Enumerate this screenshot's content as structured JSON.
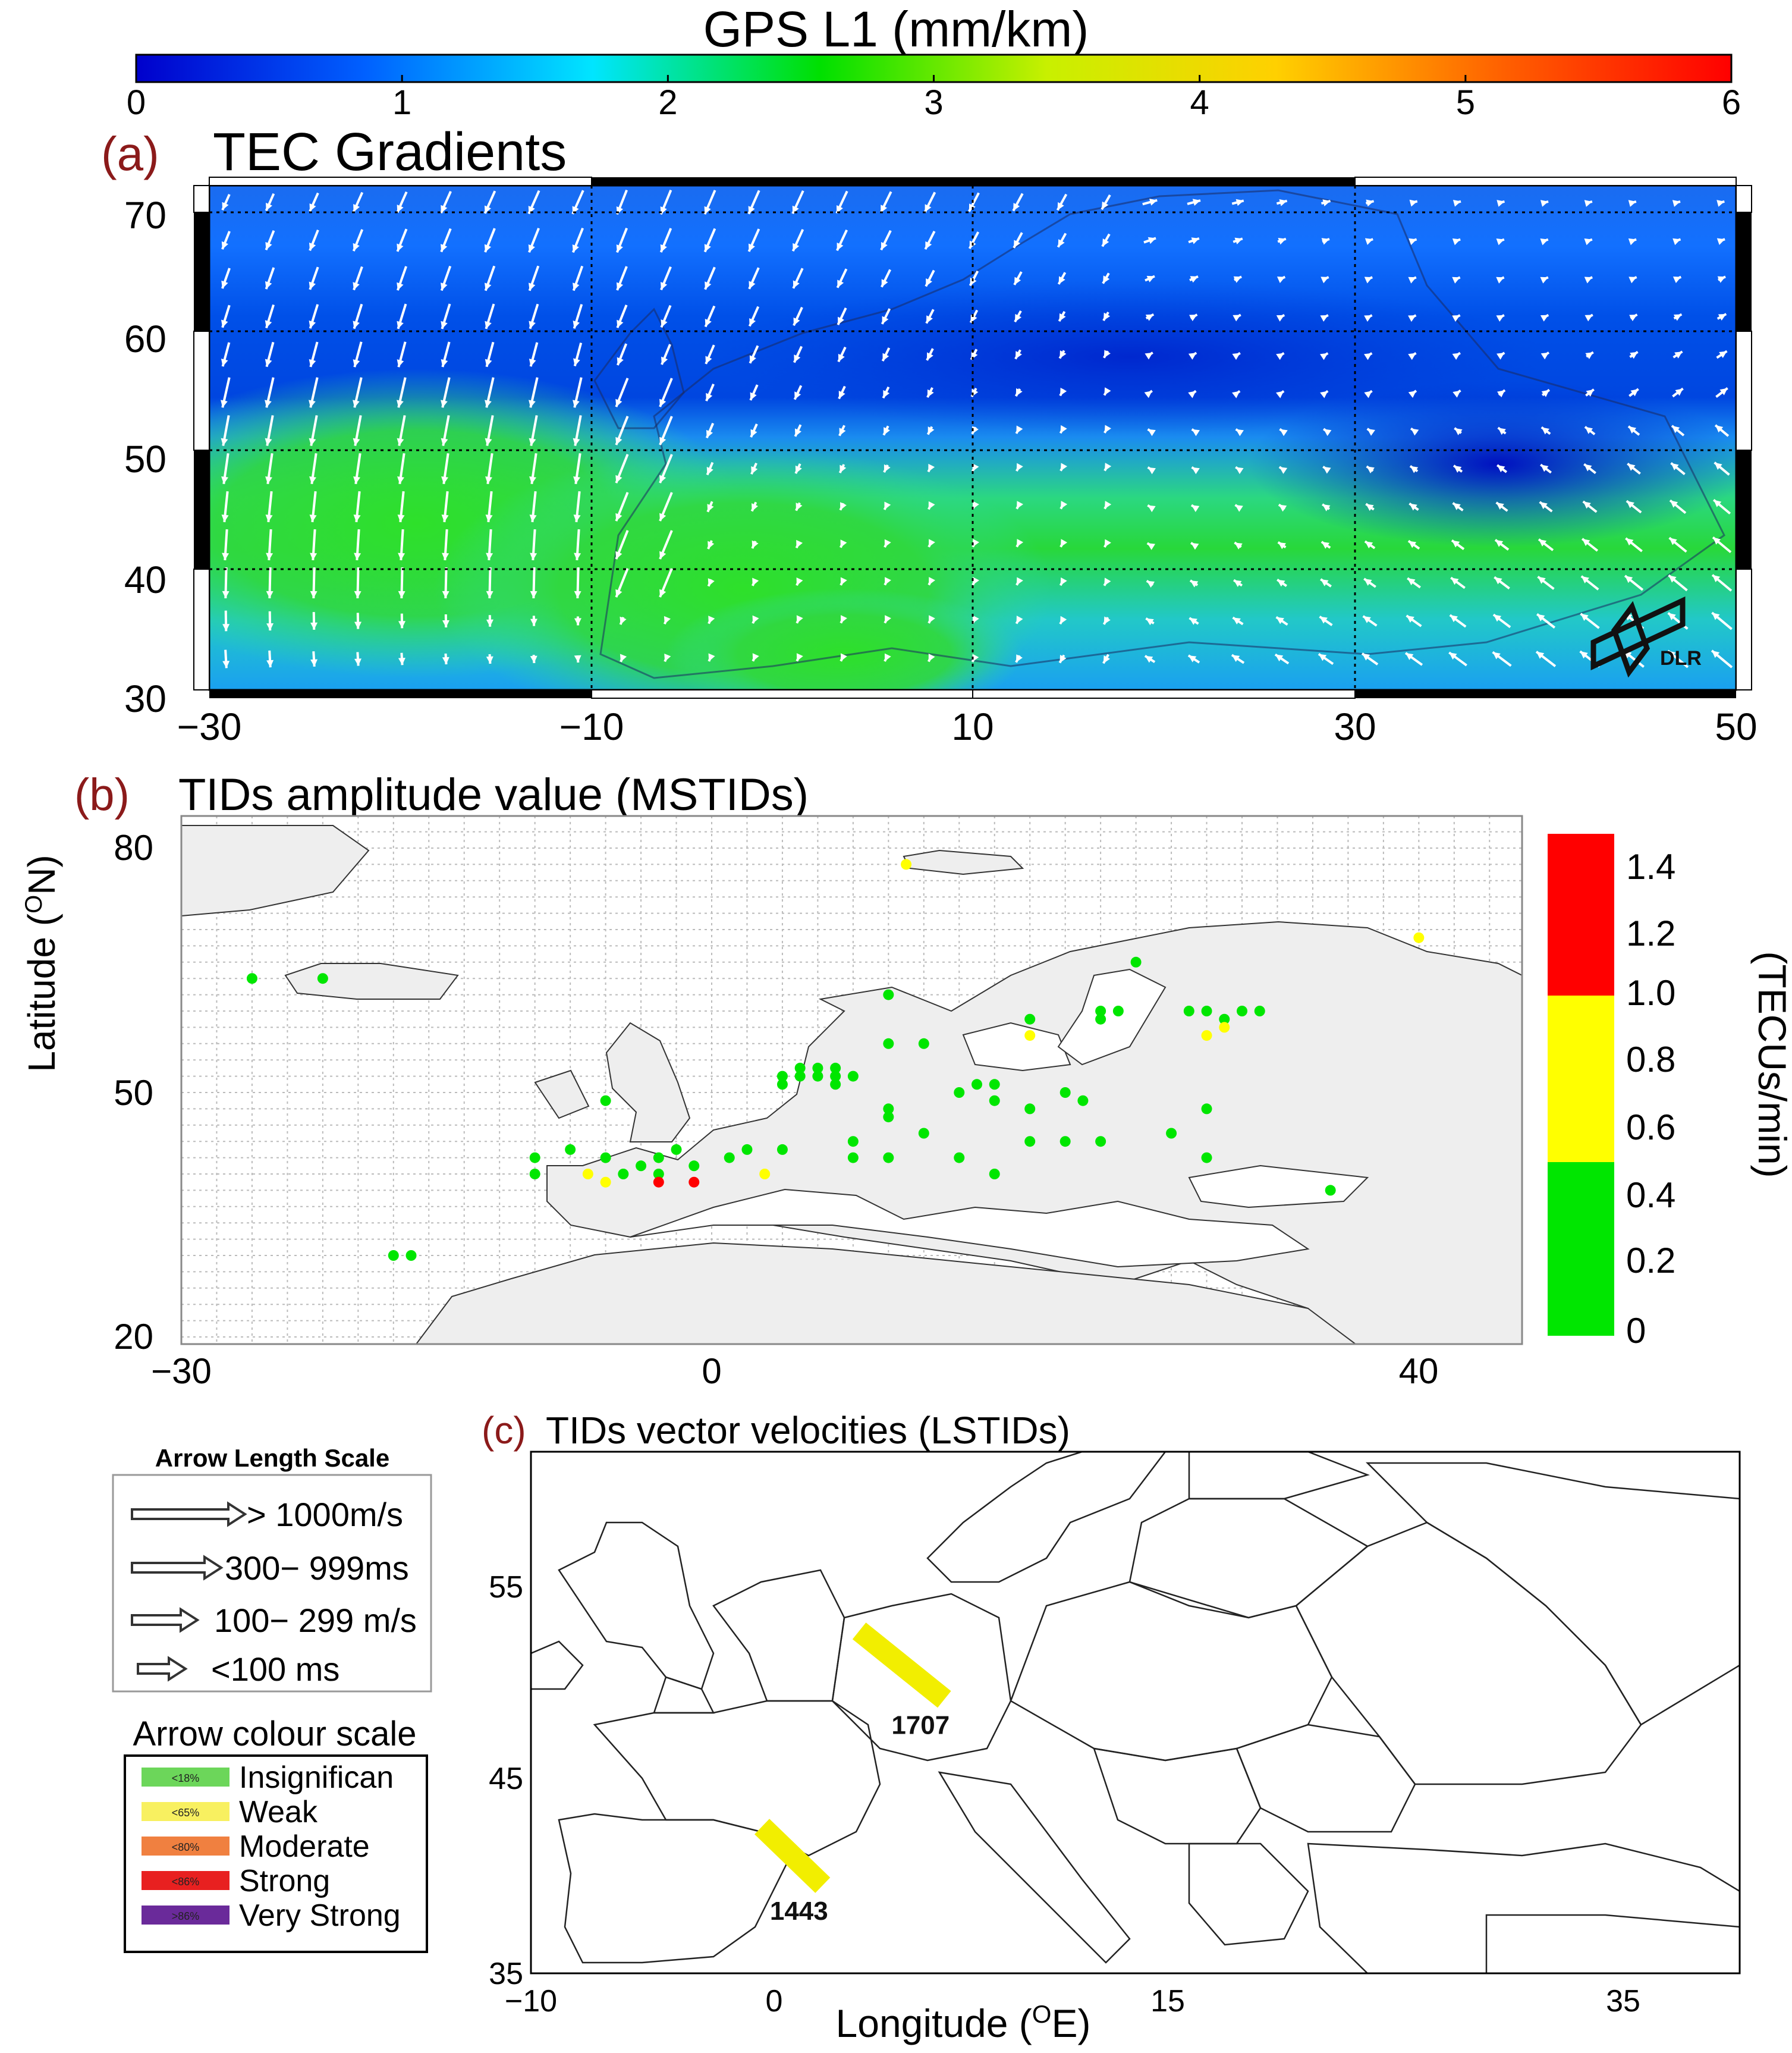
{
  "colors": {
    "ocean": "#f4f4f4",
    "land": "#e9e9e9",
    "panel_label": "#8b1a1a",
    "green": "#00e600",
    "yellow": "#ffff00",
    "red": "#ff0000",
    "track": "#f2ee00"
  },
  "colorbar": {
    "title": "GPS L1 (mm/km)",
    "ticks": [
      "0",
      "1",
      "2",
      "3",
      "4",
      "5",
      "6"
    ],
    "gradient": [
      "#0000cc",
      "#0060ff",
      "#00e5ff",
      "#00e000",
      "#c8f000",
      "#ffd000",
      "#ff6000",
      "#ff0000"
    ]
  },
  "panel_a": {
    "label": "(a)",
    "title": "TEC Gradients",
    "x_ticks": [
      "−30",
      "−10",
      "10",
      "30",
      "50"
    ],
    "y_ticks": [
      "70",
      "60",
      "50",
      "40",
      "30"
    ],
    "logo_text": "DLR"
  },
  "panel_b": {
    "label": "(b)",
    "title": "TIDs amplitude value (MSTIDs)",
    "ylabel": "Latitude (",
    "ylabel_sup": "O",
    "ylabel_end": "N)",
    "x_ticks": [
      "−30",
      "0",
      "40"
    ],
    "y_ticks": [
      "80",
      "50",
      "20"
    ],
    "legend_ticks": [
      "1.4",
      "1.2",
      "1.0",
      "0.8",
      "0.6",
      "0.4",
      "0.2",
      "0"
    ],
    "legend_unit": "(TECUs/min)",
    "stations": {
      "green": [
        [
          -26,
          64
        ],
        [
          -22,
          64
        ],
        [
          10,
          62
        ],
        [
          24,
          66
        ],
        [
          22,
          60
        ],
        [
          23,
          60
        ],
        [
          27,
          60
        ],
        [
          30,
          60
        ],
        [
          31,
          60
        ],
        [
          18,
          59
        ],
        [
          22,
          59
        ],
        [
          28,
          60
        ],
        [
          29,
          59
        ],
        [
          10,
          56
        ],
        [
          12,
          56
        ],
        [
          4,
          52
        ],
        [
          5,
          53
        ],
        [
          6,
          53
        ],
        [
          6,
          52
        ],
        [
          7,
          52
        ],
        [
          7,
          53
        ],
        [
          5,
          52
        ],
        [
          8,
          52
        ],
        [
          7,
          51
        ],
        [
          4,
          51
        ],
        [
          -6,
          49
        ],
        [
          10,
          48
        ],
        [
          15,
          51
        ],
        [
          16,
          51
        ],
        [
          14,
          50
        ],
        [
          16,
          49
        ],
        [
          20,
          50
        ],
        [
          21,
          49
        ],
        [
          18,
          48
        ],
        [
          10,
          47
        ],
        [
          28,
          48
        ],
        [
          26,
          45
        ],
        [
          22,
          44
        ],
        [
          20,
          44
        ],
        [
          18,
          44
        ],
        [
          12,
          45
        ],
        [
          8,
          44
        ],
        [
          8,
          42
        ],
        [
          10,
          42
        ],
        [
          14,
          42
        ],
        [
          16,
          40
        ],
        [
          28,
          42
        ],
        [
          35,
          38
        ],
        [
          -8,
          43
        ],
        [
          -10,
          42
        ],
        [
          -6,
          42
        ],
        [
          -4,
          41
        ],
        [
          -3,
          42
        ],
        [
          -2,
          43
        ],
        [
          -1,
          41
        ],
        [
          1,
          42
        ],
        [
          2,
          43
        ],
        [
          4,
          43
        ],
        [
          -5,
          40
        ],
        [
          -3,
          40
        ],
        [
          -10,
          40
        ],
        [
          -18,
          30
        ],
        [
          -17,
          30
        ]
      ],
      "yellow": [
        [
          11,
          78
        ],
        [
          40,
          69
        ],
        [
          18,
          57
        ],
        [
          28,
          57
        ],
        [
          29,
          58
        ],
        [
          -7,
          40
        ],
        [
          -6,
          39
        ],
        [
          3,
          40
        ]
      ],
      "red": [
        [
          -3,
          39
        ],
        [
          -1,
          39
        ]
      ]
    }
  },
  "panel_c": {
    "label": "(c)",
    "title": "TIDs vector velocities (LSTIDs)",
    "xlabel": "Longitude (",
    "xlabel_sup": "O",
    "xlabel_end": "E)",
    "x_ticks": [
      "−10",
      "0",
      "15",
      "35"
    ],
    "y_ticks": [
      "55",
      "45",
      "35"
    ],
    "tracks": [
      {
        "id": "1707",
        "from": [
          3.5,
          52.5
        ],
        "to": [
          7,
          49
        ]
      },
      {
        "id": "1443",
        "from": [
          -0.5,
          42.5
        ],
        "to": [
          2,
          39.5
        ]
      }
    ]
  },
  "legend_length": {
    "title": "Arrow Length Scale",
    "items": [
      "> 1000m/s",
      "300− 999ms",
      "100− 299 m/s",
      "<100 ms"
    ]
  },
  "legend_colour": {
    "title": "Arrow colour scale",
    "items": [
      {
        "swatch": "<18%",
        "label": "Insignifican",
        "color": "#6cd65a"
      },
      {
        "swatch": "<65%",
        "label": "Weak",
        "color": "#f8f060"
      },
      {
        "swatch": "<80%",
        "label": "Moderate",
        "color": "#f08040"
      },
      {
        "swatch": "<86%",
        "label": "Strong",
        "color": "#e82020"
      },
      {
        "swatch": ">86%",
        "label": "Very Strong",
        "color": "#6a2a9a"
      }
    ]
  }
}
